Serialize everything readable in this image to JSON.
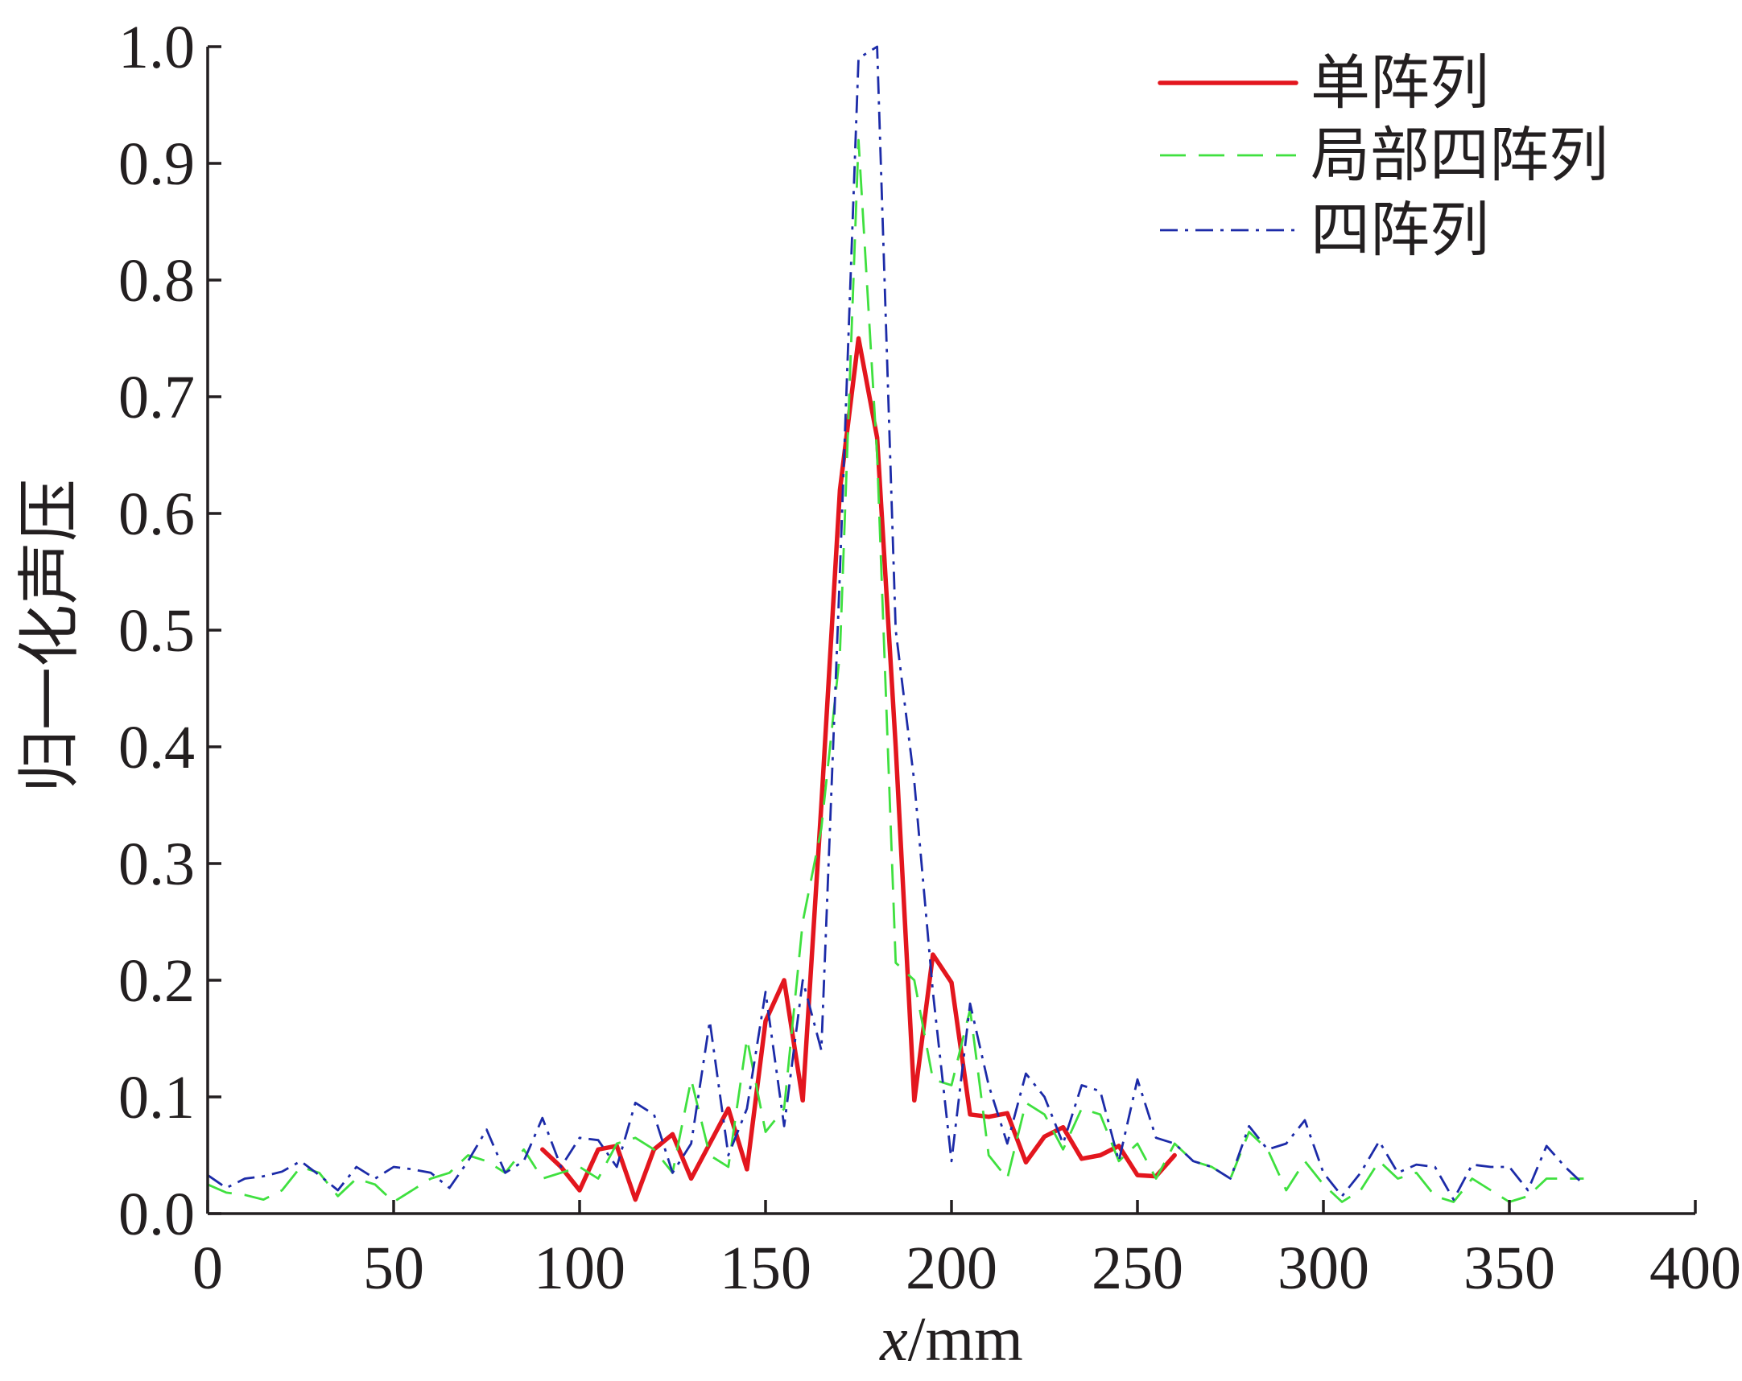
{
  "chart_data": {
    "type": "line",
    "xlabel": "x/mm",
    "ylabel": "归一化声压",
    "xlim": [
      0,
      400
    ],
    "ylim": [
      0,
      1.0
    ],
    "xticks": [
      0,
      50,
      100,
      150,
      200,
      250,
      300,
      350,
      400
    ],
    "xtick_labels": [
      "0",
      "50",
      "100",
      "150",
      "200",
      "250",
      "300",
      "350",
      "400"
    ],
    "yticks": [
      0,
      0.1,
      0.2,
      0.3,
      0.4,
      0.5,
      0.6,
      0.7,
      0.8,
      0.9,
      1.0
    ],
    "ytick_labels": [
      "0.0",
      "0.1",
      "0.2",
      "0.3",
      "0.4",
      "0.5",
      "0.6",
      "0.7",
      "0.8",
      "0.9",
      "1.0"
    ],
    "grid": false,
    "legend": "top-right",
    "series": [
      {
        "name": "单阵列",
        "color": "#e3161e",
        "x": [
          90,
          95,
          100,
          105,
          110,
          115,
          120,
          125,
          130,
          135,
          140,
          145,
          150,
          155,
          160,
          165,
          170,
          175,
          180,
          185,
          190,
          195,
          200,
          205,
          210,
          215,
          220,
          225,
          230,
          235,
          240,
          245,
          250,
          255,
          260
        ],
        "y": [
          0.055,
          0.04,
          0.02,
          0.055,
          0.058,
          0.012,
          0.055,
          0.068,
          0.03,
          0.06,
          0.09,
          0.038,
          0.165,
          0.2,
          0.097,
          0.35,
          0.62,
          0.75,
          0.665,
          0.4,
          0.097,
          0.222,
          0.198,
          0.085,
          0.083,
          0.086,
          0.044,
          0.066,
          0.074,
          0.047,
          0.05,
          0.058,
          0.033,
          0.032,
          0.05
        ]
      },
      {
        "name": "局部四阵列",
        "color": "#3fe03f",
        "x": [
          0,
          5,
          10,
          15,
          20,
          25,
          30,
          35,
          40,
          45,
          50,
          55,
          60,
          65,
          70,
          75,
          80,
          85,
          90,
          95,
          100,
          105,
          110,
          115,
          120,
          125,
          130,
          135,
          140,
          145,
          150,
          155,
          160,
          165,
          170,
          175,
          180,
          185,
          190,
          195,
          200,
          205,
          210,
          215,
          220,
          225,
          230,
          235,
          240,
          245,
          250,
          255,
          260,
          265,
          270,
          275,
          280,
          285,
          290,
          295,
          300,
          305,
          310,
          315,
          320,
          325,
          330,
          335,
          340,
          345,
          350,
          355,
          360,
          365,
          370
        ],
        "y": [
          0.025,
          0.018,
          0.016,
          0.012,
          0.02,
          0.04,
          0.035,
          0.015,
          0.03,
          0.025,
          0.01,
          0.02,
          0.03,
          0.035,
          0.05,
          0.045,
          0.035,
          0.055,
          0.03,
          0.035,
          0.04,
          0.03,
          0.06,
          0.065,
          0.055,
          0.035,
          0.115,
          0.05,
          0.04,
          0.15,
          0.07,
          0.09,
          0.25,
          0.33,
          0.48,
          0.92,
          0.65,
          0.215,
          0.2,
          0.115,
          0.11,
          0.175,
          0.05,
          0.03,
          0.095,
          0.085,
          0.055,
          0.09,
          0.085,
          0.045,
          0.06,
          0.03,
          0.06,
          0.045,
          0.04,
          0.03,
          0.07,
          0.055,
          0.02,
          0.045,
          0.025,
          0.01,
          0.02,
          0.045,
          0.03,
          0.035,
          0.015,
          0.01,
          0.03,
          0.02,
          0.01,
          0.015,
          0.03,
          0.03,
          0.03
        ]
      },
      {
        "name": "四阵列",
        "color": "#1c2ba8",
        "x": [
          0,
          5,
          10,
          15,
          20,
          25,
          30,
          35,
          40,
          45,
          50,
          55,
          60,
          65,
          70,
          75,
          80,
          85,
          90,
          95,
          100,
          105,
          110,
          115,
          120,
          125,
          130,
          135,
          140,
          145,
          150,
          155,
          160,
          165,
          170,
          175,
          180,
          185,
          190,
          195,
          200,
          205,
          210,
          215,
          220,
          225,
          230,
          235,
          240,
          245,
          250,
          255,
          260,
          265,
          270,
          275,
          280,
          285,
          290,
          295,
          300,
          305,
          310,
          315,
          320,
          325,
          330,
          335,
          340,
          345,
          350,
          355,
          360,
          365,
          370
        ],
        "y": [
          0.033,
          0.022,
          0.03,
          0.032,
          0.036,
          0.045,
          0.033,
          0.02,
          0.04,
          0.03,
          0.04,
          0.038,
          0.035,
          0.022,
          0.045,
          0.072,
          0.035,
          0.045,
          0.082,
          0.04,
          0.065,
          0.063,
          0.04,
          0.095,
          0.085,
          0.035,
          0.06,
          0.165,
          0.05,
          0.09,
          0.19,
          0.075,
          0.2,
          0.14,
          0.55,
          0.99,
          1.0,
          0.5,
          0.37,
          0.19,
          0.045,
          0.18,
          0.11,
          0.06,
          0.12,
          0.1,
          0.06,
          0.11,
          0.105,
          0.045,
          0.115,
          0.065,
          0.06,
          0.045,
          0.04,
          0.03,
          0.075,
          0.055,
          0.06,
          0.08,
          0.035,
          0.015,
          0.035,
          0.062,
          0.035,
          0.042,
          0.04,
          0.012,
          0.042,
          0.04,
          0.04,
          0.02,
          0.058,
          0.04,
          0.025
        ]
      }
    ]
  }
}
